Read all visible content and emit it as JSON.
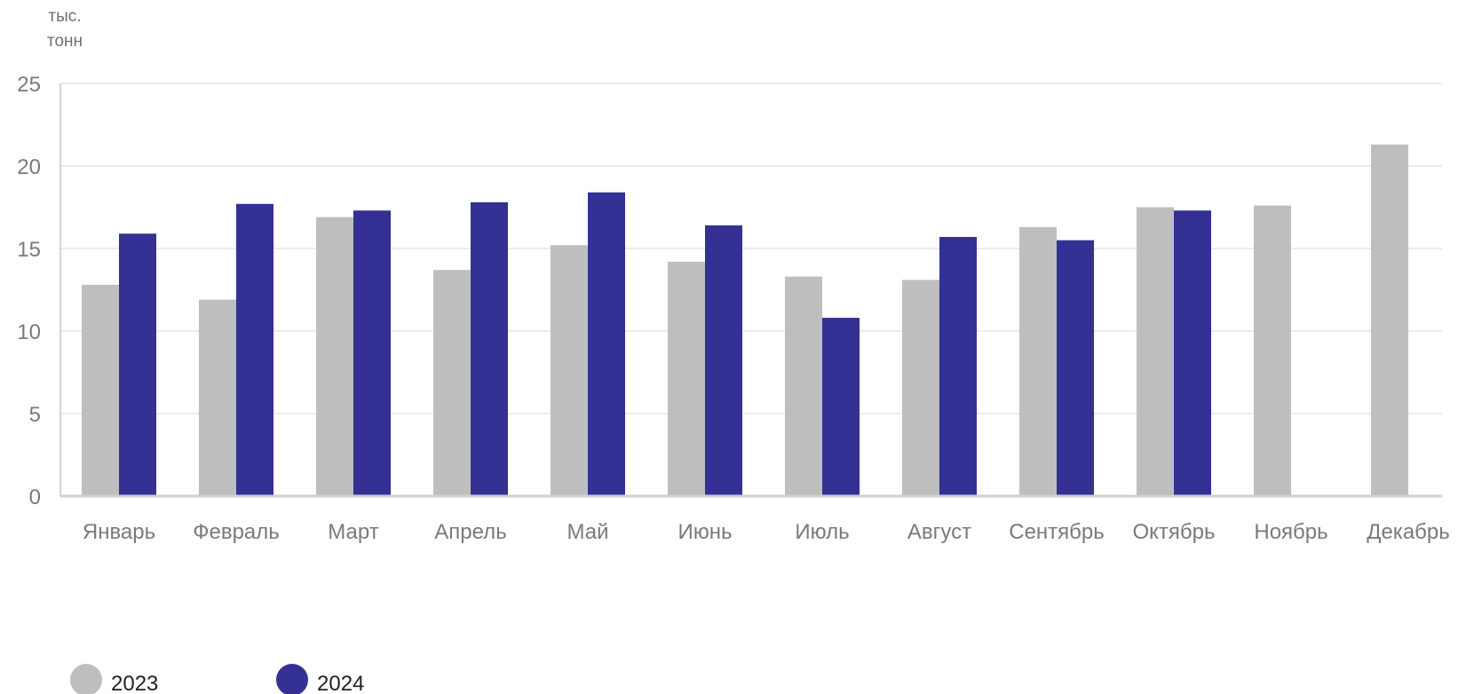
{
  "chart_data": {
    "type": "bar",
    "unit_label": [
      "тыс.",
      "тонн"
    ],
    "categories": [
      "Январь",
      "Февраль",
      "Март",
      "Апрель",
      "Май",
      "Июнь",
      "Июль",
      "Август",
      "Сентябрь",
      "Октябрь",
      "Ноябрь",
      "Декабрь"
    ],
    "series": [
      {
        "name": "2023",
        "color": "#bebebe",
        "values": [
          12.8,
          11.9,
          16.9,
          13.7,
          15.2,
          14.2,
          13.3,
          13.1,
          16.3,
          17.5,
          17.6,
          21.3
        ]
      },
      {
        "name": "2024",
        "color": "#343094",
        "values": [
          15.9,
          17.7,
          17.3,
          17.8,
          18.4,
          16.4,
          10.8,
          15.7,
          15.5,
          17.3,
          null,
          null
        ]
      }
    ],
    "ylim": [
      0,
      25
    ],
    "yticks": [
      0,
      5,
      10,
      15,
      20,
      25
    ],
    "grid": true,
    "legend_position": "bottom-left"
  }
}
